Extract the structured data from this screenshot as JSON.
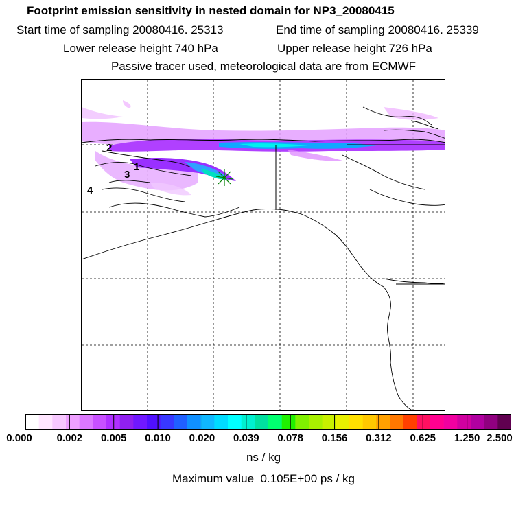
{
  "header": {
    "title": "Footprint emission sensitivity in nested domain for NP3_20080415",
    "start_label": "Start time of sampling 20080416. 25313",
    "end_label": "End time of sampling 20080416. 25339",
    "lower_label": "Lower release height  740 hPa",
    "upper_label": "Upper release height  726 hPa",
    "note": "Passive tracer used, meteorological data are from ECMWF"
  },
  "map": {
    "labels": [
      "2",
      "1",
      "3",
      "4"
    ],
    "release_marker": "release-point-star",
    "colors": {
      "coast": "#000000",
      "grid": "#000000",
      "plume_low": "#e066ff",
      "plume_mid": "#a200ff",
      "plume_high": "#00e5e5",
      "plume_peak": "#00c896"
    }
  },
  "colorbar": {
    "colors": [
      "#ffffff",
      "#ffe6ff",
      "#f7c8ff",
      "#eea0ff",
      "#dc78ff",
      "#c850ff",
      "#b030ff",
      "#9020f0",
      "#7018ff",
      "#5010ff",
      "#3838ff",
      "#2060ff",
      "#1090ff",
      "#10b8ff",
      "#00dcff",
      "#00ffff",
      "#00f0d0",
      "#00e0a0",
      "#00ff70",
      "#20f000",
      "#80f000",
      "#a8f000",
      "#c8f000",
      "#e8f000",
      "#ffe000",
      "#ffc800",
      "#ffa000",
      "#ff7800",
      "#ff4000",
      "#ff1060",
      "#ff0090",
      "#f000a0",
      "#d000a0",
      "#b000a0",
      "#900080",
      "#600050"
    ],
    "ticks": [
      "0.000",
      "0.002",
      "0.005",
      "0.010",
      "0.020",
      "0.039",
      "0.078",
      "0.156",
      "0.312",
      "0.625",
      "1.250",
      "2.500"
    ],
    "unit": "ns / kg"
  },
  "footer": {
    "max_value": "Maximum value  0.105E+00 ps / kg"
  }
}
